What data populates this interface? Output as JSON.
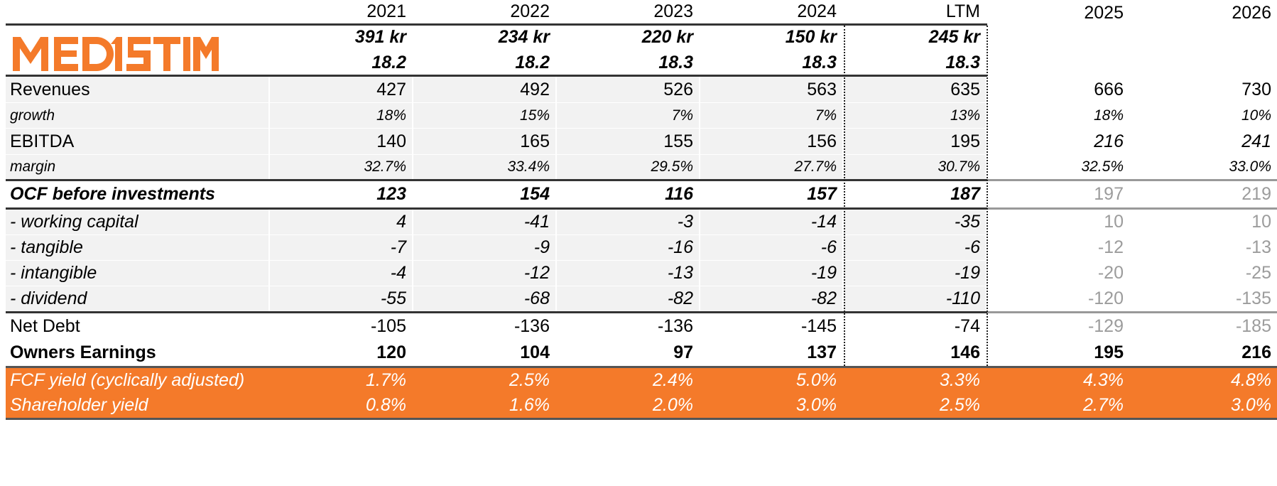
{
  "brand": {
    "logo_text": "MEDISTIM",
    "color": "#f47a2a"
  },
  "columns": [
    "2021",
    "2022",
    "2023",
    "2024",
    "LTM",
    "2025",
    "2026"
  ],
  "prices": [
    "391 kr",
    "234 kr",
    "220 kr",
    "150 kr",
    "245 kr"
  ],
  "shares": [
    "18.2",
    "18.2",
    "18.3",
    "18.3",
    "18.3"
  ],
  "rows": {
    "revenues": {
      "label": "Revenues",
      "values": [
        "427",
        "492",
        "526",
        "563",
        "635",
        "666",
        "730"
      ]
    },
    "growth": {
      "label": "growth",
      "values": [
        "18%",
        "15%",
        "7%",
        "7%",
        "13%",
        "18%",
        "10%"
      ]
    },
    "ebitda": {
      "label": "EBITDA",
      "values": [
        "140",
        "165",
        "155",
        "156",
        "195",
        "216",
        "241"
      ]
    },
    "margin": {
      "label": "margin",
      "values": [
        "32.7%",
        "33.4%",
        "29.5%",
        "27.7%",
        "30.7%",
        "32.5%",
        "33.0%"
      ]
    },
    "ocf": {
      "label": "OCF before investments",
      "values": [
        "123",
        "154",
        "116",
        "157",
        "187",
        "197",
        "219"
      ]
    },
    "working_capital": {
      "label": "- working capital",
      "values": [
        "4",
        "-41",
        "-3",
        "-14",
        "-35",
        "10",
        "10"
      ]
    },
    "tangible": {
      "label": "- tangible",
      "values": [
        "-7",
        "-9",
        "-16",
        "-6",
        "-6",
        "-12",
        "-13"
      ]
    },
    "intangible": {
      "label": "- intangible",
      "values": [
        "-4",
        "-12",
        "-13",
        "-19",
        "-19",
        "-20",
        "-25"
      ]
    },
    "dividend": {
      "label": "- dividend",
      "values": [
        "-55",
        "-68",
        "-82",
        "-82",
        "-110",
        "-120",
        "-135"
      ]
    },
    "net_debt": {
      "label": "Net Debt",
      "values": [
        "-105",
        "-136",
        "-136",
        "-145",
        "-74",
        "-129",
        "-185"
      ]
    },
    "owners_earnings": {
      "label": "Owners Earnings",
      "values": [
        "120",
        "104",
        "97",
        "137",
        "146",
        "195",
        "216"
      ]
    },
    "fcf_yield": {
      "label": "FCF yield (cyclically adjusted)",
      "values": [
        "1.7%",
        "2.5%",
        "2.4%",
        "5.0%",
        "3.3%",
        "4.3%",
        "4.8%"
      ]
    },
    "shareholder_yield": {
      "label": "Shareholder yield",
      "values": [
        "0.8%",
        "1.6%",
        "2.0%",
        "3.0%",
        "2.5%",
        "2.7%",
        "3.0%"
      ]
    }
  }
}
